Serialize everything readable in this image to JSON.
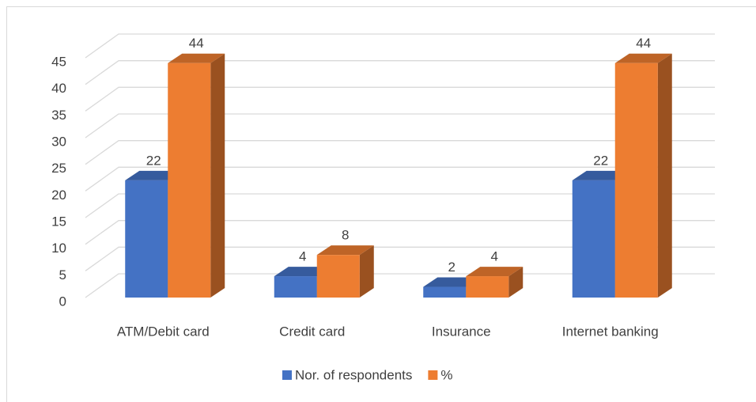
{
  "chart_data": {
    "type": "bar3d",
    "categories": [
      "ATM/Debit card",
      "Credit card",
      "Insurance",
      "Internet banking"
    ],
    "series": [
      {
        "name": "Nor. of respondents",
        "color": "#4472c4",
        "values": [
          22,
          4,
          2,
          22
        ]
      },
      {
        "name": "%",
        "color": "#ed7d31",
        "values": [
          44,
          8,
          4,
          44
        ]
      }
    ],
    "ylim": [
      0,
      45
    ],
    "yticks": [
      0,
      5,
      10,
      15,
      20,
      25,
      30,
      35,
      40,
      45
    ],
    "grid": true,
    "legend": "bottom"
  }
}
